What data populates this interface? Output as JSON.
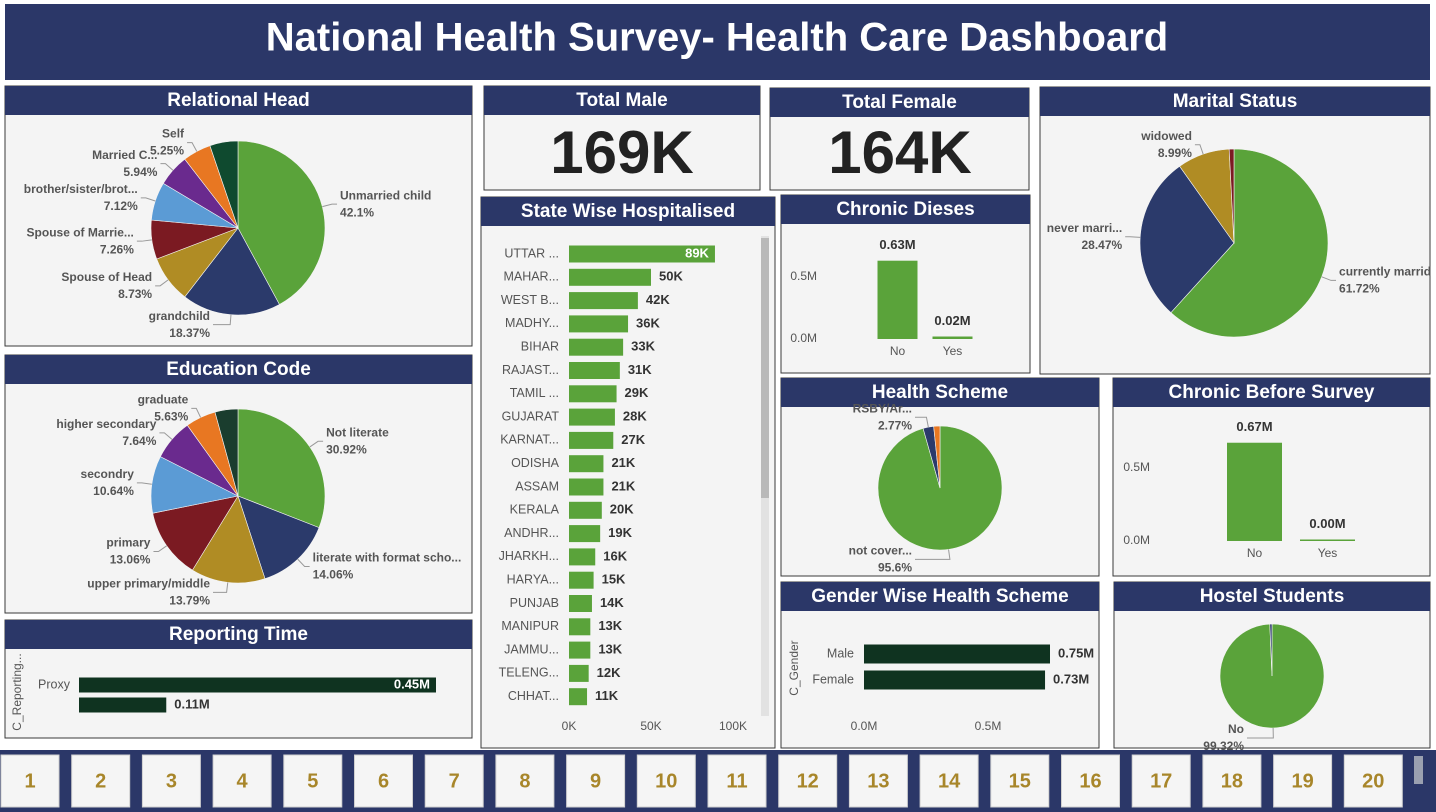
{
  "title": "National Health Survey- Health Care Dashboard",
  "kpis": [
    {
      "title": "Total Male",
      "value": "169K"
    },
    {
      "title": "Total Female",
      "value": "164K"
    }
  ],
  "chart_data": [
    {
      "type": "pie",
      "title": "Relational Head",
      "categories": [
        "Unmarried child",
        "grandchild",
        "Spouse of Head",
        "Spouse of Marrie...",
        "brother/sister/brot...",
        "Married C...",
        "Self",
        null
      ],
      "values": [
        42.1,
        18.37,
        8.73,
        7.26,
        7.12,
        5.94,
        5.25,
        5.23
      ],
      "value_labels": [
        "42.1%",
        "18.37%",
        "8.73%",
        "7.26%",
        "7.12%",
        "5.94%",
        "5.25%",
        null
      ],
      "colors": [
        "#5aa33a",
        "#2b3a6b",
        "#b08c24",
        "#7b1a22",
        "#5b9bd5",
        "#6a2a8e",
        "#e87722",
        "#0f4a2f"
      ]
    },
    {
      "type": "pie",
      "title": "Education Code",
      "categories": [
        "Not literate",
        "literate with format scho...",
        "upper primary/middle",
        "primary",
        "secondry",
        "higher secondary",
        "graduate",
        null
      ],
      "values": [
        30.92,
        14.06,
        13.79,
        13.06,
        10.64,
        7.64,
        5.63,
        4.26
      ],
      "value_labels": [
        "30.92%",
        "14.06%",
        "13.79%",
        "13.06%",
        "10.64%",
        "7.64%",
        "5.63%",
        null
      ],
      "colors": [
        "#5aa33a",
        "#2b3a6b",
        "#b08c24",
        "#7b1a22",
        "#5b9bd5",
        "#6a2a8e",
        "#e87722",
        "#1a3d2e"
      ]
    },
    {
      "type": "hbar",
      "title": "Reporting Time",
      "y_label": "C_Reporting...",
      "categories": [
        "Proxy",
        null
      ],
      "values": [
        0.45,
        0.11
      ],
      "value_labels": [
        "0.45M",
        "0.11M"
      ],
      "color": "#0f3320"
    },
    {
      "type": "hbar",
      "title": "State Wise Hospitalised",
      "categories": [
        "UTTAR ...",
        "MAHAR...",
        "WEST B...",
        "MADHY...",
        "BIHAR",
        "RAJAST...",
        "TAMIL ...",
        "GUJARAT",
        "KARNAT...",
        "ODISHA",
        "ASSAM",
        "KERALA",
        "ANDHR...",
        "JHARKH...",
        "HARYA...",
        "PUNJAB",
        "MANIPUR",
        "JAMMU...",
        "TELENG...",
        "CHHAT..."
      ],
      "values": [
        89,
        50,
        42,
        36,
        33,
        31,
        29,
        28,
        27,
        21,
        21,
        20,
        19,
        16,
        15,
        14,
        13,
        13,
        12,
        11
      ],
      "value_labels": [
        "89K",
        "50K",
        "42K",
        "36K",
        "33K",
        "31K",
        "29K",
        "28K",
        "27K",
        "21K",
        "21K",
        "20K",
        "19K",
        "16K",
        "15K",
        "14K",
        "13K",
        "13K",
        "12K",
        "11K"
      ],
      "color": "#5aa33a",
      "xlim": [
        0,
        100
      ],
      "xticks": [
        {
          "value": 0,
          "label": "0K"
        },
        {
          "value": 50,
          "label": "50K"
        },
        {
          "value": 100,
          "label": "100K"
        }
      ]
    },
    {
      "type": "bar",
      "title": "Chronic Dieses",
      "categories": [
        "No",
        "Yes"
      ],
      "values": [
        0.63,
        0.02
      ],
      "value_labels": [
        "0.63M",
        "0.02M"
      ],
      "color": "#5aa33a",
      "ylim": [
        0,
        0.7
      ],
      "yticks": [
        {
          "value": 0,
          "label": "0.0M"
        },
        {
          "value": 0.5,
          "label": "0.5M"
        }
      ]
    },
    {
      "type": "pie",
      "title": "Marital Status",
      "categories": [
        "currently marrid",
        "never marri...",
        "widowed",
        null
      ],
      "values": [
        61.72,
        28.47,
        8.99,
        0.82
      ],
      "value_labels": [
        "61.72%",
        "28.47%",
        "8.99%",
        null
      ],
      "colors": [
        "#5aa33a",
        "#2b3a6b",
        "#b08c24",
        "#7b1a22"
      ]
    },
    {
      "type": "pie",
      "title": "Health Scheme",
      "categories": [
        "not cover...",
        "RSBY/Ar...",
        null
      ],
      "values": [
        95.6,
        2.77,
        1.63
      ],
      "value_labels": [
        "95.6%",
        "2.77%",
        null
      ],
      "colors": [
        "#5aa33a",
        "#2b3a6b",
        "#e87722"
      ]
    },
    {
      "type": "bar",
      "title": "Chronic Before Survey",
      "categories": [
        "No",
        "Yes"
      ],
      "values": [
        0.67,
        0.003
      ],
      "value_labels": [
        "0.67M",
        "0.00M"
      ],
      "color": "#5aa33a",
      "ylim": [
        0,
        0.75
      ],
      "yticks": [
        {
          "value": 0,
          "label": "0.0M"
        },
        {
          "value": 0.5,
          "label": "0.5M"
        }
      ]
    },
    {
      "type": "hbar",
      "title": "Gender Wise Health Scheme",
      "y_label": "C_Gender",
      "categories": [
        "Male",
        "Female"
      ],
      "values": [
        0.75,
        0.73
      ],
      "value_labels": [
        "0.75M",
        "0.73M"
      ],
      "color": "#0f3320",
      "xlim": [
        0,
        0.75
      ],
      "xticks": [
        {
          "value": 0,
          "label": "0.0M"
        },
        {
          "value": 0.5,
          "label": "0.5M"
        }
      ]
    },
    {
      "type": "pie",
      "title": "Hostel Students",
      "categories": [
        "No",
        null
      ],
      "values": [
        99.32,
        0.68
      ],
      "value_labels": [
        "99.32%",
        null
      ],
      "colors": [
        "#5aa33a",
        "#2b3a6b"
      ]
    }
  ],
  "pages": [
    1,
    2,
    3,
    4,
    5,
    6,
    7,
    8,
    9,
    10,
    11,
    12,
    13,
    14,
    15,
    16,
    17,
    18,
    19,
    20
  ]
}
